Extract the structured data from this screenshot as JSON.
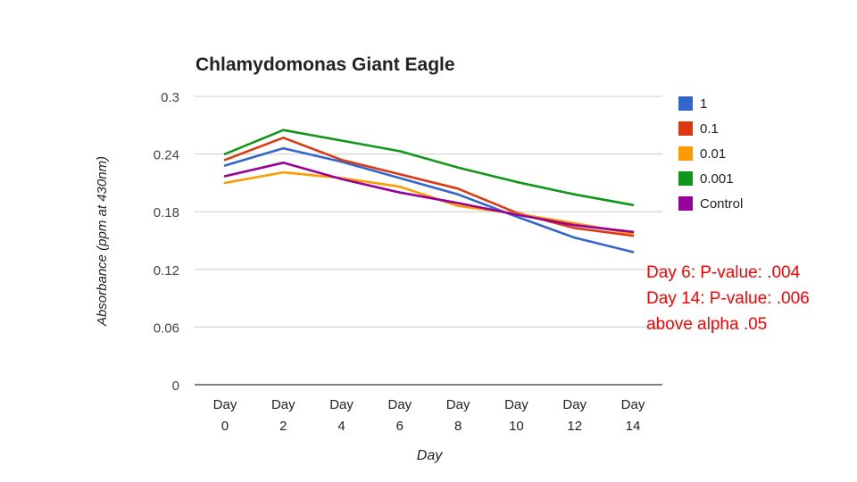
{
  "chart_data": {
    "type": "line",
    "title": "Chlamydomonas Giant Eagle",
    "xlabel": "Day",
    "ylabel": "Absorbance (ppm at 430nm)",
    "categories": [
      [
        "Day",
        "0"
      ],
      [
        "Day",
        "2"
      ],
      [
        "Day",
        "4"
      ],
      [
        "Day",
        "6"
      ],
      [
        "Day",
        "8"
      ],
      [
        "Day",
        "10"
      ],
      [
        "Day",
        "12"
      ],
      [
        "Day",
        "14"
      ]
    ],
    "y_ticks": [
      "0",
      "0.06",
      "0.12",
      "0.18",
      "0.24",
      "0.3"
    ],
    "ylim": [
      0,
      0.3
    ],
    "grid": true,
    "legend_position": "right",
    "series": [
      {
        "name": "1",
        "color": "#3366cc",
        "values": [
          0.228,
          0.246,
          0.232,
          0.215,
          0.198,
          0.175,
          0.153,
          0.138
        ]
      },
      {
        "name": "0.1",
        "color": "#dc3912",
        "values": [
          0.234,
          0.257,
          0.234,
          0.219,
          0.204,
          0.179,
          0.163,
          0.155
        ]
      },
      {
        "name": "0.01",
        "color": "#ff9900",
        "values": [
          0.21,
          0.221,
          0.215,
          0.206,
          0.186,
          0.178,
          0.168,
          0.157
        ]
      },
      {
        "name": "0.001",
        "color": "#109618",
        "values": [
          0.24,
          0.265,
          0.254,
          0.243,
          0.226,
          0.211,
          0.198,
          0.187
        ]
      },
      {
        "name": "Control",
        "color": "#990099",
        "values": [
          0.217,
          0.231,
          0.214,
          0.2,
          0.189,
          0.177,
          0.166,
          0.159
        ]
      }
    ]
  },
  "annotation": {
    "lines": [
      "Day 6: P-value:  .004",
      "Day 14: P-value:  .006",
      "above alpha .05"
    ],
    "color": "#ff0000"
  }
}
